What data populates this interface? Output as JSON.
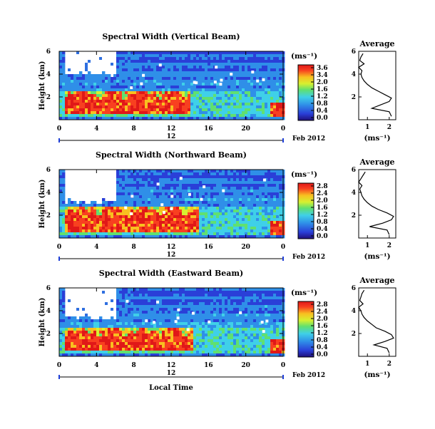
{
  "chart_data": [
    {
      "type": "heatmap",
      "title": "Spectral Width (Vertical Beam)",
      "ylabel": "Height (km)",
      "ylim": [
        0,
        6
      ],
      "yticks": [
        "6",
        "4",
        "2"
      ],
      "xticks": [
        "0",
        "4",
        "8",
        "12",
        "16",
        "20",
        "0"
      ],
      "xlim": [
        0,
        24
      ],
      "date_label": "12",
      "date_month": "Feb 2012",
      "colorbar": {
        "unit": "(ms⁻¹)",
        "ticks": [
          "3.6",
          "3.4",
          "2.0",
          "1.6",
          "1.2",
          "0.8",
          "0.4",
          "0.0"
        ]
      },
      "average": {
        "title": "Average",
        "xlabel": "(ms⁻¹)",
        "xticks": [
          "1",
          "2"
        ],
        "xlim": [
          0.6,
          2.3
        ],
        "yticks": [
          "6",
          "4",
          "2"
        ]
      },
      "features": {
        "high_band_top_km": 2.6,
        "high_band_start_hr": 0.5,
        "high_band_end_hr": 14,
        "blank_region": {
          "x": [
            0.5,
            6
          ],
          "y": [
            4,
            6
          ]
        }
      },
      "average_profile": {
        "height_km": [
          0.3,
          0.7,
          1.0,
          1.3,
          1.6,
          1.9,
          2.2,
          2.5,
          2.8,
          3.1,
          3.4,
          3.7,
          4.0,
          4.3,
          4.6,
          4.9,
          5.2,
          5.5,
          5.8
        ],
        "value": [
          2.1,
          2.0,
          1.2,
          1.6,
          2.0,
          2.1,
          1.8,
          1.5,
          1.2,
          1.0,
          0.85,
          0.75,
          0.7,
          0.75,
          0.6,
          0.85,
          0.65,
          0.7,
          0.8
        ]
      }
    },
    {
      "type": "heatmap",
      "title": "Spectral Width (Northward Beam)",
      "ylabel": "Height (km)",
      "ylim": [
        0,
        6
      ],
      "yticks": [
        "6",
        "4",
        "2"
      ],
      "xticks": [
        "0",
        "4",
        "8",
        "12",
        "16",
        "20",
        "0"
      ],
      "xlim": [
        0,
        24
      ],
      "date_label": "12",
      "date_month": "Feb 2012",
      "colorbar": {
        "unit": "(ms⁻¹)",
        "ticks": [
          "2.8",
          "2.4",
          "2.0",
          "1.6",
          "1.2",
          "0.8",
          "0.4",
          "0.0"
        ]
      },
      "average": {
        "title": "Average",
        "xlabel": "(ms⁻¹)",
        "xticks": [
          "1",
          "2"
        ],
        "xlim": [
          0.6,
          2.3
        ],
        "yticks": [
          "6",
          "4",
          "2"
        ]
      },
      "features": {
        "high_band_top_km": 2.8,
        "high_band_start_hr": 0.5,
        "high_band_end_hr": 15,
        "blank_region": {
          "x": [
            0.5,
            6
          ],
          "y": [
            3.2,
            6
          ]
        }
      },
      "average_profile": {
        "height_km": [
          0.3,
          0.7,
          1.0,
          1.3,
          1.6,
          1.9,
          2.2,
          2.5,
          2.8,
          3.1,
          3.4,
          3.7,
          4.0,
          4.3,
          4.6,
          4.9,
          5.2,
          5.5,
          5.8
        ],
        "value": [
          2.0,
          1.9,
          1.1,
          1.7,
          2.1,
          2.2,
          1.9,
          1.5,
          1.2,
          1.0,
          0.85,
          0.75,
          0.7,
          0.65,
          0.75,
          0.6,
          0.7,
          0.8,
          0.9
        ]
      }
    },
    {
      "type": "heatmap",
      "title": "Spectral Width (Eastward Beam)",
      "ylabel": "Height (km)",
      "ylim": [
        0,
        6
      ],
      "yticks": [
        "6",
        "4",
        "2"
      ],
      "xticks": [
        "0",
        "4",
        "8",
        "12",
        "16",
        "20",
        "0"
      ],
      "xlim": [
        0,
        24
      ],
      "date_label": "12",
      "date_month": "Feb 2012",
      "colorbar": {
        "unit": "(ms⁻¹)",
        "ticks": [
          "2.8",
          "2.4",
          "2.0",
          "1.6",
          "1.2",
          "0.8",
          "0.4",
          "0.0"
        ]
      },
      "average": {
        "title": "Average",
        "xlabel": "(ms⁻¹)",
        "xticks": [
          "1",
          "2"
        ],
        "xlim": [
          0.6,
          2.3
        ],
        "yticks": [
          "6",
          "4",
          "2"
        ]
      },
      "features": {
        "high_band_top_km": 2.5,
        "high_band_start_hr": 0.5,
        "high_band_end_hr": 14.5,
        "blank_region": {
          "x": [
            0.5,
            6
          ],
          "y": [
            3.4,
            6
          ]
        }
      },
      "average_profile": {
        "height_km": [
          0.3,
          0.7,
          1.0,
          1.3,
          1.6,
          1.9,
          2.2,
          2.5,
          2.8,
          3.1,
          3.4,
          3.7,
          4.0,
          4.3,
          4.6,
          4.9,
          5.2,
          5.5,
          5.8
        ],
        "value": [
          2.0,
          1.9,
          1.3,
          1.8,
          2.2,
          2.1,
          1.8,
          1.4,
          1.2,
          1.0,
          0.85,
          0.75,
          0.7,
          0.6,
          0.8,
          0.65,
          0.7,
          0.75,
          0.85
        ]
      }
    }
  ],
  "xlabel": "Local Time"
}
